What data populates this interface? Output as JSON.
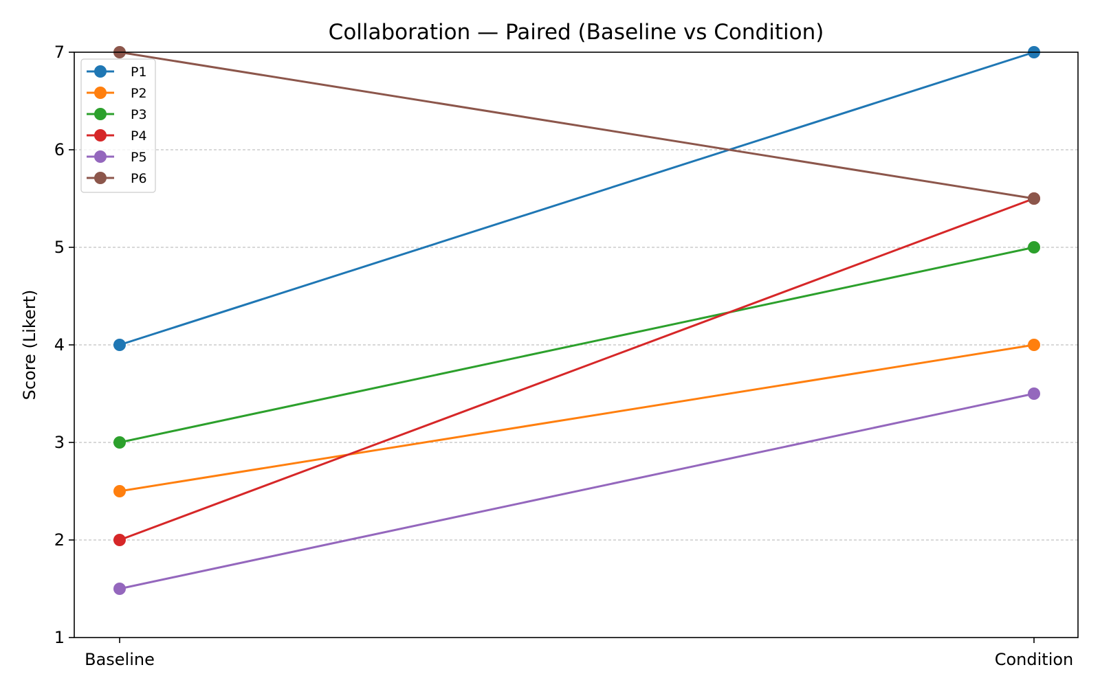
{
  "chart_data": {
    "type": "line",
    "title": "Collaboration — Paired (Baseline vs Condition)",
    "xlabel": "",
    "ylabel": "Score (Likert)",
    "categories": [
      "Baseline",
      "Condition"
    ],
    "ylim": [
      1,
      7
    ],
    "yticks": [
      "1",
      "2",
      "3",
      "4",
      "5",
      "6",
      "7"
    ],
    "grid": "horizontal dashed",
    "legend_position": "upper left",
    "series": [
      {
        "name": "P1",
        "values": [
          4,
          7
        ],
        "color": "#1f77b4"
      },
      {
        "name": "P2",
        "values": [
          2.5,
          4
        ],
        "color": "#ff7f0e"
      },
      {
        "name": "P3",
        "values": [
          3,
          5
        ],
        "color": "#2ca02c"
      },
      {
        "name": "P4",
        "values": [
          2,
          5.5
        ],
        "color": "#d62728"
      },
      {
        "name": "P5",
        "values": [
          1.5,
          3.5
        ],
        "color": "#9467bd"
      },
      {
        "name": "P6",
        "values": [
          7,
          5.5
        ],
        "color": "#8c564b"
      }
    ]
  }
}
